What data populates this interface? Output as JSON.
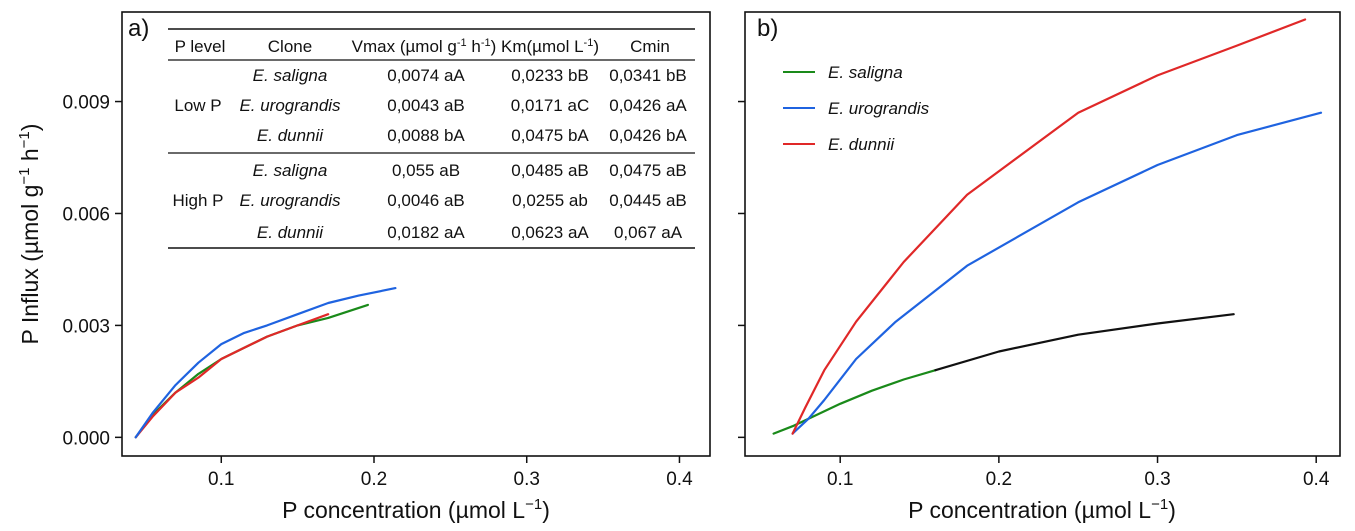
{
  "colors": {
    "green": "#1a8a1a",
    "blue": "#1f63e0",
    "red": "#e02828",
    "black": "#111111"
  },
  "chart_data": [
    {
      "panel_label": "a)",
      "type": "line",
      "xlabel": "P concentration (µmol L",
      "xlabel_sup": "−1",
      "xlabel_end": ")",
      "ylabel": "P Influx (µmol g",
      "ylabel_sup1": "−1",
      "ylabel_mid": " h",
      "ylabel_sup2": "−1",
      "ylabel_end": ")",
      "xlim": [
        0.035,
        0.42
      ],
      "ylim": [
        -0.0005,
        0.0114
      ],
      "xticks": [
        0.1,
        0.2,
        0.3,
        0.4
      ],
      "xtick_labels": [
        "0.1",
        "0.2",
        "0.3",
        "0.4"
      ],
      "yticks": [
        0.0,
        0.003,
        0.006,
        0.009
      ],
      "ytick_labels": [
        "0.000",
        "0.003",
        "0.006",
        "0.009"
      ],
      "series": [
        {
          "color_key": "green",
          "x": [
            0.044,
            0.055,
            0.07,
            0.085,
            0.1,
            0.115,
            0.13,
            0.15,
            0.17,
            0.196
          ],
          "y": [
            0.0,
            0.0006,
            0.0012,
            0.0017,
            0.0021,
            0.0024,
            0.0027,
            0.003,
            0.0032,
            0.00355
          ]
        },
        {
          "color_key": "red",
          "x": [
            0.044,
            0.055,
            0.07,
            0.085,
            0.1,
            0.115,
            0.13,
            0.15,
            0.17
          ],
          "y": [
            0.0,
            0.00055,
            0.0012,
            0.0016,
            0.0021,
            0.0024,
            0.0027,
            0.003,
            0.0033
          ]
        },
        {
          "color_key": "blue",
          "x": [
            0.044,
            0.055,
            0.07,
            0.085,
            0.1,
            0.115,
            0.13,
            0.15,
            0.17,
            0.19,
            0.214
          ],
          "y": [
            0.0,
            0.00065,
            0.0014,
            0.002,
            0.0025,
            0.0028,
            0.003,
            0.0033,
            0.0036,
            0.0038,
            0.004
          ]
        }
      ],
      "table": {
        "headers": [
          "P level",
          "Clone",
          "Vmax (µmol g",
          "Km(µmol L",
          "Cmin"
        ],
        "header_sup": {
          "vmax_1": "-1",
          "vmax_mid": " h",
          "vmax_2": "-1",
          "vmax_end": ")",
          "km": "-1",
          "km_end": ")"
        },
        "groups": [
          {
            "level": "Low P",
            "rows": [
              {
                "clone": "E. saligna",
                "vmax": "0,0074 aA",
                "km": "0,0233 bB",
                "cmin": "0,0341 bB"
              },
              {
                "clone": "E. urograndis",
                "vmax": "0,0043 aB",
                "km": "0,0171 aC",
                "cmin": "0,0426 aA"
              },
              {
                "clone": "E. dunnii",
                "vmax": "0,0088 bA",
                "km": "0,0475 bA",
                "cmin": "0,0426 bA"
              }
            ]
          },
          {
            "level": "High P",
            "rows": [
              {
                "clone": "E. saligna",
                "vmax": "0,055 aB",
                "km": "0,0485 aB",
                "cmin": "0,0475 aB"
              },
              {
                "clone": "E. urograndis",
                "vmax": "0,0046 aB",
                "km": "0,0255 ab",
                "cmin": "0,0445 aB"
              },
              {
                "clone": "E. dunnii",
                "vmax": "0,0182 aA",
                "km": "0,0623 aA",
                "cmin": "0,067  aA"
              }
            ]
          }
        ]
      }
    },
    {
      "panel_label": "b)",
      "type": "line",
      "xlabel": "P concentration (µmol L",
      "xlabel_sup": "−1",
      "xlabel_end": ")",
      "xlim": [
        0.04,
        0.415
      ],
      "ylim": [
        -0.0005,
        0.0114
      ],
      "xticks": [
        0.1,
        0.2,
        0.3,
        0.4
      ],
      "xtick_labels": [
        "0.1",
        "0.2",
        "0.3",
        "0.4"
      ],
      "yticks": [
        0.0,
        0.003,
        0.006,
        0.009
      ],
      "legend": [
        {
          "name": "E. saligna",
          "color_key": "green"
        },
        {
          "name": "E. urograndis",
          "color_key": "blue"
        },
        {
          "name": "E. dunnii",
          "color_key": "red"
        }
      ],
      "legend_position": "top-left",
      "series": [
        {
          "name": "E. saligna",
          "color_key": "green",
          "x": [
            0.058,
            0.07,
            0.08,
            0.1,
            0.12,
            0.14,
            0.16
          ],
          "y": [
            0.0001,
            0.0003,
            0.0005,
            0.0009,
            0.00125,
            0.00155,
            0.0018
          ]
        },
        {
          "name": "E. saligna (black segment)",
          "color_key": "black",
          "x": [
            0.16,
            0.2,
            0.25,
            0.3,
            0.348
          ],
          "y": [
            0.0018,
            0.0023,
            0.00275,
            0.00305,
            0.0033
          ]
        },
        {
          "name": "E. urograndis",
          "color_key": "blue",
          "x": [
            0.07,
            0.08,
            0.09,
            0.11,
            0.135,
            0.18,
            0.25,
            0.3,
            0.35,
            0.403
          ],
          "y": [
            0.0001,
            0.0005,
            0.001,
            0.0021,
            0.0031,
            0.0046,
            0.0063,
            0.0073,
            0.0081,
            0.0087
          ]
        },
        {
          "name": "E. dunnii",
          "color_key": "red",
          "x": [
            0.07,
            0.078,
            0.09,
            0.11,
            0.14,
            0.18,
            0.25,
            0.3,
            0.35,
            0.393
          ],
          "y": [
            0.0001,
            0.0008,
            0.0018,
            0.0031,
            0.0047,
            0.0065,
            0.0087,
            0.0097,
            0.0105,
            0.0112
          ]
        }
      ]
    }
  ]
}
